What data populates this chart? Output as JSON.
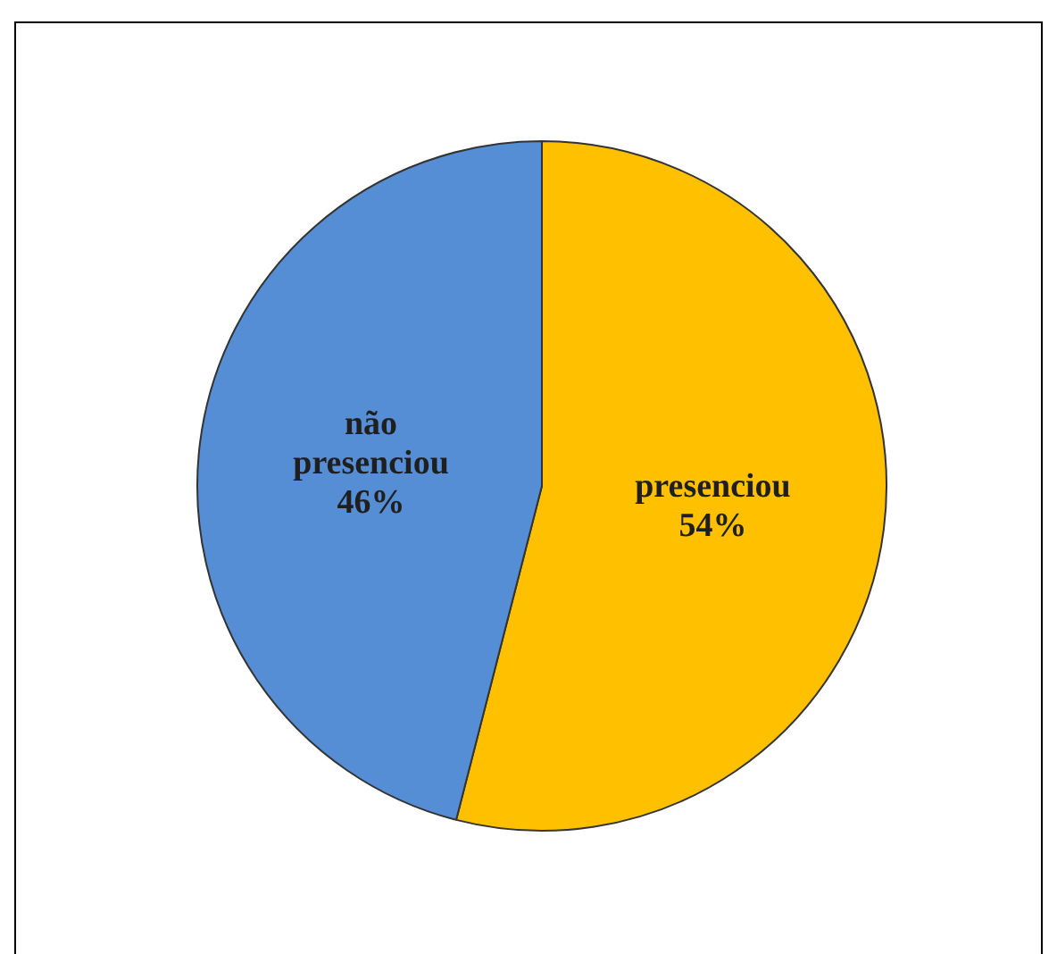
{
  "chart_data": {
    "type": "pie",
    "categories": [
      "presenciou",
      "não presenciou"
    ],
    "values": [
      54,
      46
    ],
    "colors": [
      "#ffc000",
      "#558ed5"
    ],
    "value_labels": [
      "54%",
      "46%"
    ],
    "legend": false
  }
}
